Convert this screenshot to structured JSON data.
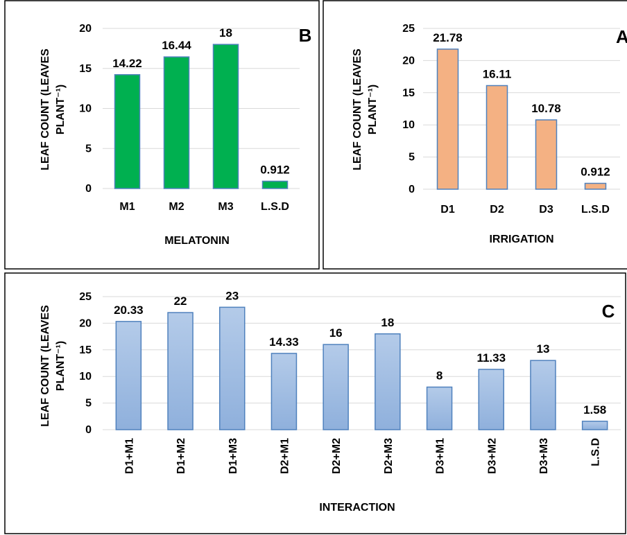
{
  "chart_data": [
    {
      "type": "bar",
      "panel_letter": "B",
      "categories": [
        "M1",
        "M2",
        "M3",
        "L.S.D"
      ],
      "values": [
        14.22,
        16.44,
        18,
        0.912
      ],
      "data_labels": [
        "14.22",
        "16.44",
        "18",
        "0.912"
      ],
      "xlabel": "MELATONIN",
      "ylabel_line1": "LEAF COUNT (LEAVES",
      "ylabel_line2": "PLANT⁻¹)",
      "ylim": [
        0,
        20
      ],
      "yticks": [
        0,
        5,
        10,
        15,
        20
      ],
      "grid": true,
      "colors": {
        "fill": "#00b050",
        "stroke": "#4f81bd"
      }
    },
    {
      "type": "bar",
      "panel_letter": "A",
      "categories": [
        "D1",
        "D2",
        "D3",
        "L.S.D"
      ],
      "values": [
        21.78,
        16.11,
        10.78,
        0.912
      ],
      "data_labels": [
        "21.78",
        "16.11",
        "10.78",
        "0.912"
      ],
      "xlabel": "IRRIGATION",
      "ylabel_line1": "LEAF COUNT (LEAVES",
      "ylabel_line2": "PLANT⁻¹)",
      "ylim": [
        0,
        25
      ],
      "yticks": [
        0,
        5,
        10,
        15,
        20,
        25
      ],
      "grid": true,
      "colors": {
        "fill": "#f4b183",
        "stroke": "#4f81bd"
      }
    },
    {
      "type": "bar",
      "panel_letter": "C",
      "categories": [
        "D1+M1",
        "D1+M2",
        "D1+M3",
        "D2+M1",
        "D2+M2",
        "D2+M3",
        "D3+M1",
        "D3+M2",
        "D3+M3",
        "L.S.D"
      ],
      "values": [
        20.33,
        22,
        23,
        14.33,
        16,
        18,
        8,
        11.33,
        13,
        1.58
      ],
      "data_labels": [
        "20.33",
        "22",
        "23",
        "14.33",
        "16",
        "18",
        "8",
        "11.33",
        "13",
        "1.58"
      ],
      "xlabel": "INTERACTION",
      "ylabel_line1": "LEAF COUNT (LEAVES",
      "ylabel_line2": "PLANT⁻¹)",
      "ylim": [
        0,
        25
      ],
      "yticks": [
        0,
        5,
        10,
        15,
        20,
        25
      ],
      "grid": true,
      "colors": {
        "fill_top": "#b4cbe9",
        "fill_bottom": "#8fb0dc",
        "stroke": "#4f81bd"
      }
    }
  ]
}
